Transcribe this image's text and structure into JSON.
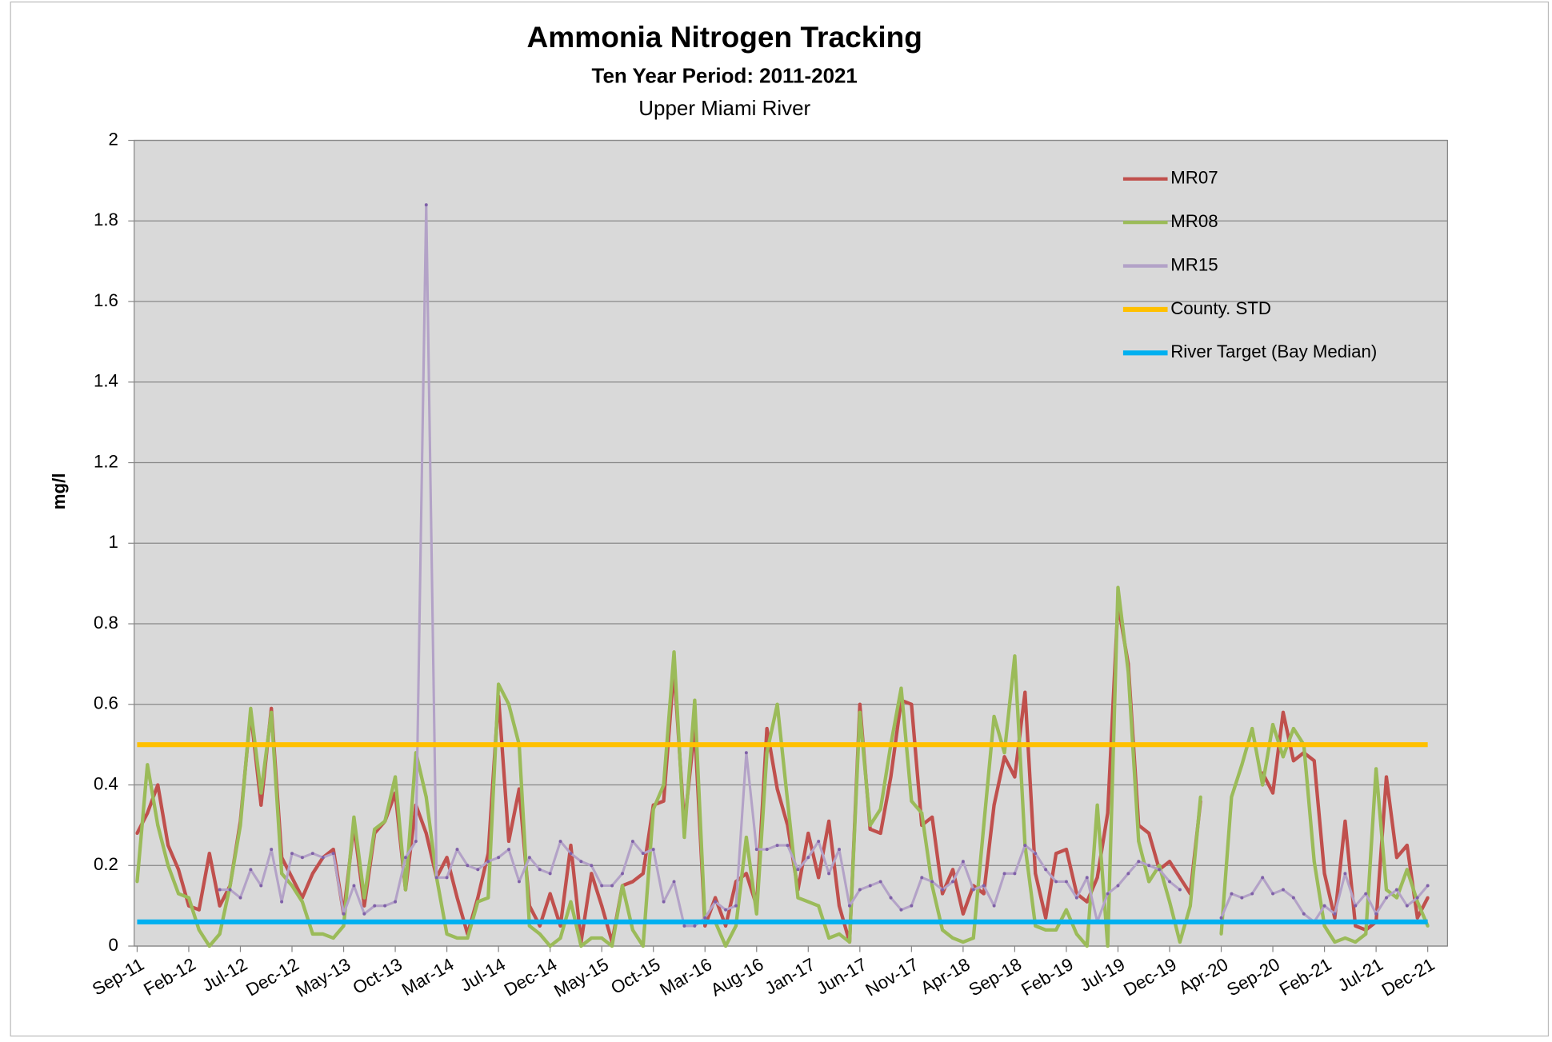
{
  "chart_data": {
    "type": "line",
    "title": "Ammonia Nitrogen Tracking",
    "subtitle": "Ten Year Period:  2011-2021",
    "subtitle2": "Upper Miami River",
    "y_label": "mg/l",
    "categories": [
      "Sep-11",
      null,
      null,
      null,
      null,
      "Feb-12",
      null,
      null,
      null,
      null,
      "Jul-12",
      null,
      null,
      null,
      null,
      "Dec-12",
      null,
      null,
      null,
      null,
      "May-13",
      null,
      null,
      null,
      null,
      "Oct-13",
      null,
      null,
      null,
      null,
      "Mar-14",
      null,
      null,
      null,
      null,
      "Jul-14",
      null,
      null,
      null,
      null,
      "Dec-14",
      null,
      null,
      null,
      null,
      "May-15",
      null,
      null,
      null,
      null,
      "Oct-15",
      null,
      null,
      null,
      null,
      "Mar-16",
      null,
      null,
      null,
      null,
      "Aug-16",
      null,
      null,
      null,
      null,
      "Jan-17",
      null,
      null,
      null,
      null,
      "Jun-17",
      null,
      null,
      null,
      null,
      "Nov-17",
      null,
      null,
      null,
      null,
      "Apr-18",
      null,
      null,
      null,
      null,
      "Sep-18",
      null,
      null,
      null,
      null,
      "Feb-19",
      null,
      null,
      null,
      null,
      "Jul-19",
      null,
      null,
      null,
      null,
      "Dec-19",
      null,
      null,
      null,
      null,
      "Apr-20",
      null,
      null,
      null,
      null,
      "Sep-20",
      null,
      null,
      null,
      null,
      "Feb-21",
      null,
      null,
      null,
      null,
      "Jul-21",
      null,
      null,
      null,
      null,
      "Dec-21"
    ],
    "series": [
      {
        "name": "MR07",
        "color": "#c0504d",
        "values": [
          0.28,
          0.33,
          0.4,
          0.25,
          0.19,
          0.1,
          0.09,
          0.23,
          0.1,
          0.15,
          0.31,
          0.58,
          0.35,
          0.59,
          0.22,
          0.17,
          0.12,
          0.18,
          0.22,
          0.24,
          0.08,
          0.3,
          0.1,
          0.28,
          0.31,
          0.38,
          0.14,
          0.35,
          0.28,
          0.17,
          0.22,
          0.12,
          0.03,
          0.12,
          0.23,
          0.62,
          0.26,
          0.39,
          0.1,
          0.05,
          0.13,
          0.05,
          0.25,
          0.01,
          0.18,
          0.1,
          0.01,
          0.15,
          0.16,
          0.18,
          0.35,
          0.36,
          0.69,
          0.3,
          0.54,
          0.05,
          0.12,
          0.05,
          0.16,
          0.18,
          0.1,
          0.54,
          0.39,
          0.3,
          0.14,
          0.28,
          0.17,
          0.31,
          0.1,
          0.01,
          0.6,
          0.29,
          0.28,
          0.42,
          0.61,
          0.6,
          0.3,
          0.32,
          0.13,
          0.19,
          0.08,
          0.15,
          0.13,
          0.35,
          0.47,
          0.42,
          0.63,
          0.18,
          0.07,
          0.23,
          0.24,
          0.13,
          0.11,
          0.17,
          0.33,
          0.85,
          0.7,
          0.3,
          0.28,
          0.19,
          0.21,
          0.17,
          0.13,
          0.36,
          null,
          null,
          null,
          null,
          null,
          0.43,
          0.38,
          0.58,
          0.46,
          0.48,
          0.46,
          0.18,
          0.07,
          0.31,
          0.05,
          0.04,
          0.06,
          0.42,
          0.22,
          0.25,
          0.07,
          0.12
        ]
      },
      {
        "name": "MR08",
        "color": "#9bbb59",
        "values": [
          0.16,
          0.45,
          0.3,
          0.2,
          0.13,
          0.12,
          0.04,
          0.0,
          0.03,
          0.15,
          0.3,
          0.59,
          0.38,
          0.58,
          0.18,
          0.15,
          0.11,
          0.03,
          0.03,
          0.02,
          0.05,
          0.32,
          0.12,
          0.29,
          0.31,
          0.42,
          0.14,
          0.48,
          0.37,
          0.17,
          0.03,
          0.02,
          0.02,
          0.11,
          0.12,
          0.65,
          0.6,
          0.5,
          0.05,
          0.03,
          0.0,
          0.02,
          0.11,
          0.0,
          0.02,
          0.02,
          0.0,
          0.15,
          0.04,
          0.0,
          0.34,
          0.4,
          0.73,
          0.27,
          0.61,
          0.06,
          0.06,
          0.0,
          0.05,
          0.27,
          0.08,
          0.48,
          0.6,
          0.36,
          0.12,
          0.11,
          0.1,
          0.02,
          0.03,
          0.01,
          0.58,
          0.3,
          0.34,
          0.5,
          0.64,
          0.36,
          0.33,
          0.15,
          0.04,
          0.02,
          0.01,
          0.02,
          0.3,
          0.57,
          0.48,
          0.72,
          0.25,
          0.05,
          0.04,
          0.04,
          0.09,
          0.03,
          0.0,
          0.35,
          0.0,
          0.89,
          0.68,
          0.26,
          0.16,
          0.2,
          0.11,
          0.01,
          0.1,
          0.37,
          null,
          0.03,
          0.37,
          0.45,
          0.54,
          0.4,
          0.55,
          0.47,
          0.54,
          0.5,
          0.21,
          0.05,
          0.01,
          0.02,
          0.01,
          0.03,
          0.44,
          0.14,
          0.12,
          0.19,
          0.11,
          0.05
        ]
      },
      {
        "name": "MR15",
        "color": "#b3a2c7",
        "values": [
          null,
          null,
          null,
          null,
          null,
          null,
          null,
          null,
          0.14,
          0.14,
          0.12,
          0.19,
          0.15,
          0.24,
          0.11,
          0.23,
          0.22,
          0.23,
          0.22,
          0.23,
          0.08,
          0.15,
          0.08,
          0.1,
          0.1,
          0.11,
          0.22,
          0.26,
          1.84,
          0.17,
          0.17,
          0.24,
          0.2,
          0.19,
          0.21,
          0.22,
          0.24,
          0.16,
          0.22,
          0.19,
          0.18,
          0.26,
          0.23,
          0.21,
          0.2,
          0.15,
          0.15,
          0.18,
          0.26,
          0.23,
          0.24,
          0.11,
          0.16,
          0.05,
          0.05,
          0.07,
          0.11,
          0.09,
          0.1,
          0.48,
          0.24,
          0.24,
          0.25,
          0.25,
          0.19,
          0.22,
          0.26,
          0.18,
          0.24,
          0.1,
          0.14,
          0.15,
          0.16,
          0.12,
          0.09,
          0.1,
          0.17,
          0.16,
          0.14,
          0.16,
          0.21,
          0.14,
          0.15,
          0.1,
          0.18,
          0.18,
          0.25,
          0.23,
          0.19,
          0.16,
          0.16,
          0.12,
          0.17,
          0.06,
          0.13,
          0.15,
          0.18,
          0.21,
          0.2,
          0.19,
          0.16,
          0.14,
          null,
          null,
          null,
          0.07,
          0.13,
          0.12,
          0.13,
          0.17,
          0.13,
          0.14,
          0.12,
          0.08,
          0.06,
          0.1,
          0.08,
          0.18,
          0.1,
          0.13,
          0.08,
          0.12,
          0.14,
          0.1,
          0.12,
          0.15
        ]
      },
      {
        "name": "County. STD",
        "color": "#ffc000",
        "value": 0.5
      },
      {
        "name": "River Target (Bay Median)",
        "color": "#00b0f0",
        "value": 0.06
      }
    ],
    "ylim": [
      0,
      2
    ],
    "yticks": [
      0,
      0.2,
      0.4,
      0.6,
      0.8,
      1,
      1.2,
      1.4,
      1.6,
      1.8,
      2
    ],
    "grid": true
  }
}
